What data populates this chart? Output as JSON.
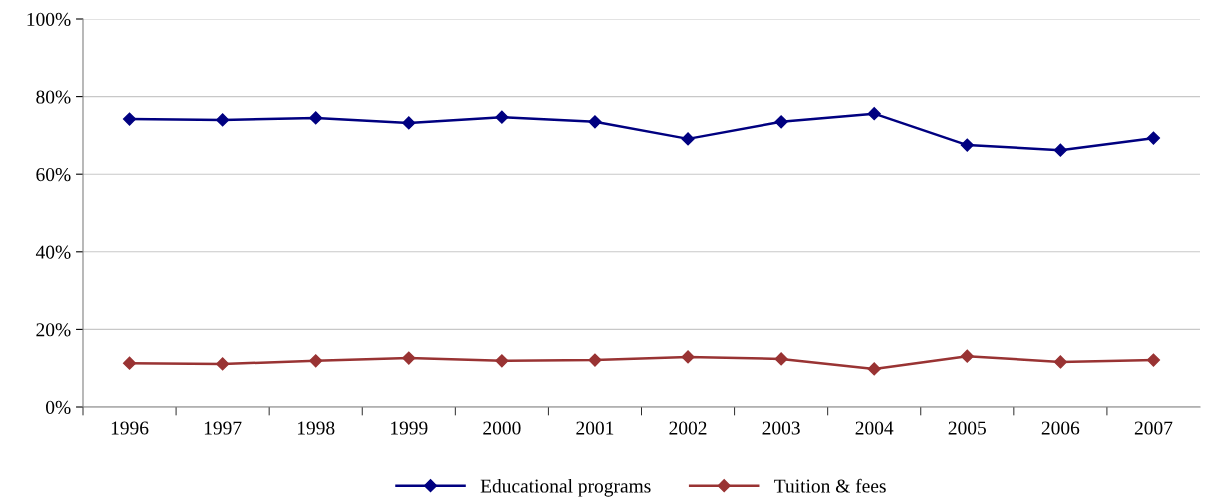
{
  "chart_data": {
    "type": "line",
    "categories": [
      "1996",
      "1997",
      "1998",
      "1999",
      "2000",
      "2001",
      "2002",
      "2003",
      "2004",
      "2005",
      "2006",
      "2007"
    ],
    "series": [
      {
        "name": "Educational programs",
        "color": "#000080",
        "values": [
          74.2,
          74.0,
          74.5,
          73.2,
          74.7,
          73.5,
          69.1,
          73.5,
          75.6,
          67.5,
          66.2,
          69.3
        ]
      },
      {
        "name": "Tuition & fees",
        "color": "#993333",
        "values": [
          11.3,
          11.1,
          11.9,
          12.6,
          11.9,
          12.1,
          12.9,
          12.4,
          9.8,
          13.1,
          11.6,
          12.1
        ]
      }
    ],
    "ylim": [
      0,
      100
    ],
    "yticks": [
      {
        "value": 0,
        "label": "0%"
      },
      {
        "value": 20,
        "label": "20%"
      },
      {
        "value": 40,
        "label": "40%"
      },
      {
        "value": 60,
        "label": "60%"
      },
      {
        "value": 80,
        "label": "80%"
      },
      {
        "value": 100,
        "label": "100%"
      }
    ],
    "grid": "y",
    "legend": "bottom",
    "marker": "diamond",
    "line_style": "solid"
  }
}
